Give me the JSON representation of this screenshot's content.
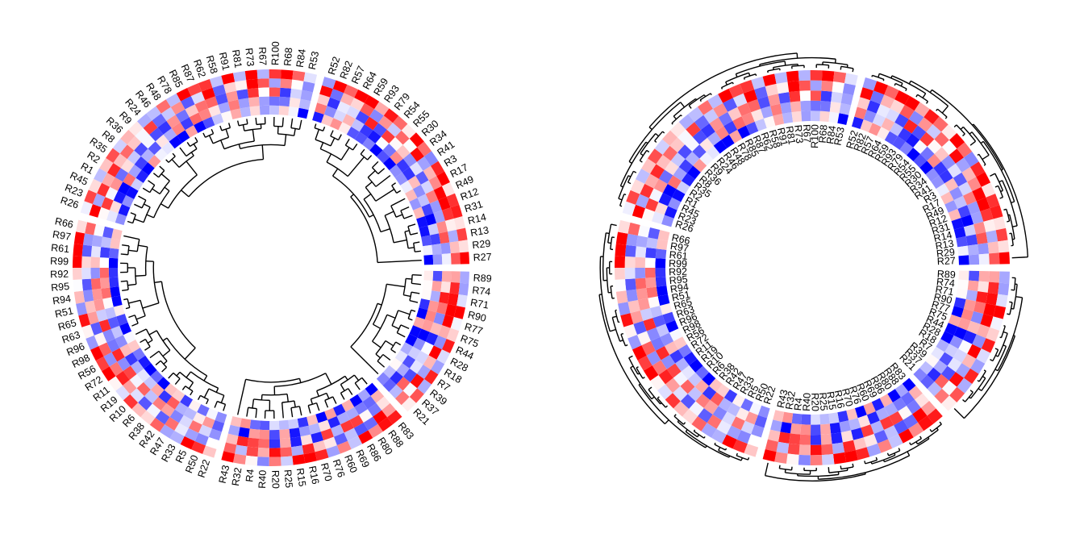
{
  "chart_data": [
    {
      "type": "heatmap",
      "layout": "circular",
      "tracks": 5,
      "dendrogram_position": "inside",
      "labels_position": "outside",
      "color_scale": {
        "low": "#0000ff",
        "mid": "#ffffff",
        "high": "#ff0000"
      },
      "sectors": [
        {
          "labels": [
            "R52",
            "R82",
            "R57",
            "R64",
            "R59",
            "R93",
            "R79",
            "R54",
            "R55",
            "R30",
            "R34",
            "R41",
            "R3",
            "R17",
            "R49",
            "R12",
            "R31",
            "R14",
            "R13",
            "R29",
            "R27"
          ]
        },
        {
          "labels": [
            "R89",
            "R74",
            "R71",
            "R90",
            "R77",
            "R75",
            "R44",
            "R28",
            "R18",
            "R7",
            "R39",
            "R37",
            "R21"
          ]
        },
        {
          "labels": [
            "R83",
            "R88",
            "R80",
            "R86",
            "R69",
            "R60",
            "R76",
            "R70",
            "R16",
            "R15",
            "R25",
            "R20",
            "R40",
            "R4",
            "R32",
            "R43"
          ]
        },
        {
          "labels": [
            "R22",
            "R50",
            "R5",
            "R33",
            "R47",
            "R42",
            "R38",
            "R6",
            "R10",
            "R19",
            "R11",
            "R72",
            "R56",
            "R98",
            "R96",
            "R63",
            "R65",
            "R51",
            "R94",
            "R95",
            "R92",
            "R99",
            "R61",
            "R97",
            "R66"
          ]
        },
        {
          "labels": [
            "R26",
            "R23",
            "R45",
            "R1",
            "R2",
            "R35",
            "R8",
            "R36",
            "R9",
            "R24",
            "R46",
            "R48",
            "R78",
            "R85",
            "R87",
            "R62",
            "R58",
            "R91",
            "R81",
            "R73",
            "R67",
            "R100",
            "R68",
            "R84",
            "R53"
          ]
        }
      ]
    },
    {
      "type": "heatmap",
      "layout": "circular",
      "tracks": 5,
      "dendrogram_position": "outside",
      "labels_position": "inside",
      "color_scale": {
        "low": "#0000ff",
        "mid": "#ffffff",
        "high": "#ff0000"
      },
      "sectors": [
        {
          "labels": [
            "R52",
            "R82",
            "R57",
            "R64",
            "R59",
            "R93",
            "R79",
            "R54",
            "R55",
            "R30",
            "R34",
            "R41",
            "R3",
            "R17",
            "R49",
            "R12",
            "R31",
            "R14",
            "R13",
            "R29",
            "R27"
          ]
        },
        {
          "labels": [
            "R89",
            "R74",
            "R71",
            "R90",
            "R77",
            "R75",
            "R44",
            "R28",
            "R18",
            "R7",
            "R39",
            "R37",
            "R21"
          ]
        },
        {
          "labels": [
            "R83",
            "R88",
            "R80",
            "R86",
            "R69",
            "R60",
            "R76",
            "R70",
            "R16",
            "R15",
            "R25",
            "R20",
            "R40",
            "R4",
            "R32",
            "R43"
          ]
        },
        {
          "labels": [
            "R22",
            "R50",
            "R5",
            "R33",
            "R47",
            "R42",
            "R38",
            "R6",
            "R10",
            "R19",
            "R11",
            "R72",
            "R56",
            "R98",
            "R96",
            "R63",
            "R65",
            "R51",
            "R94",
            "R95",
            "R92",
            "R99",
            "R61",
            "R97",
            "R66"
          ]
        },
        {
          "labels": [
            "R26",
            "R23",
            "R45",
            "R1",
            "R2",
            "R35",
            "R8",
            "R36",
            "R9",
            "R24",
            "R46",
            "R48",
            "R78",
            "R85",
            "R87",
            "R62",
            "R58",
            "R91",
            "R81",
            "R73",
            "R67",
            "R100",
            "R68",
            "R84",
            "R53"
          ]
        }
      ]
    }
  ]
}
